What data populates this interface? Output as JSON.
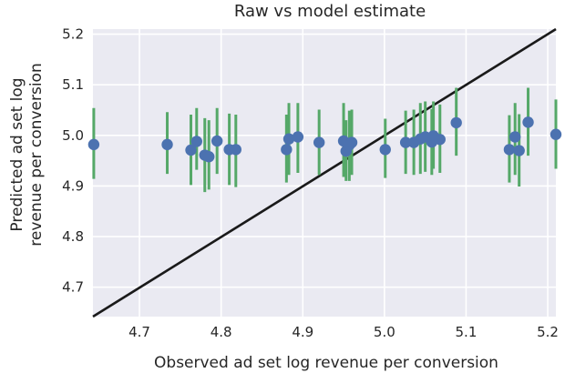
{
  "chart_data": {
    "type": "scatter",
    "title": "Raw vs model estimate",
    "xlabel": "Observed ad set log revenue per conversion",
    "ylabel_lines": [
      "Predicted ad set log",
      "revenue per conversion"
    ],
    "xlim": [
      4.643,
      5.21
    ],
    "ylim": [
      4.642,
      5.21
    ],
    "x_ticks": [
      4.7,
      4.8,
      4.9,
      5.0,
      5.1,
      5.2
    ],
    "x_tick_labels": [
      "4.7",
      "4.8",
      "4.9",
      "5.0",
      "5.1",
      "5.2"
    ],
    "y_ticks": [
      4.7,
      4.8,
      4.9,
      5.0,
      5.1,
      5.2
    ],
    "y_tick_labels": [
      "4.7",
      "4.8",
      "4.9",
      "5.0",
      "5.1",
      "5.2"
    ],
    "grid": true,
    "background": "#eaeaf2",
    "point_color": "#4c72b0",
    "errorbar_color": "#55a868",
    "line_color": "#1a1a1a",
    "reference_line": {
      "x": [
        4.643,
        5.21
      ],
      "y": [
        4.642,
        5.21
      ]
    },
    "points": [
      {
        "x": 4.644,
        "y": 4.982,
        "lo": 4.914,
        "hi": 5.054
      },
      {
        "x": 4.734,
        "y": 4.982,
        "lo": 4.924,
        "hi": 5.046
      },
      {
        "x": 4.763,
        "y": 4.971,
        "lo": 4.902,
        "hi": 5.041
      },
      {
        "x": 4.77,
        "y": 4.988,
        "lo": 4.932,
        "hi": 5.054
      },
      {
        "x": 4.78,
        "y": 4.961,
        "lo": 4.888,
        "hi": 5.034
      },
      {
        "x": 4.785,
        "y": 4.958,
        "lo": 4.893,
        "hi": 5.03
      },
      {
        "x": 4.795,
        "y": 4.989,
        "lo": 4.924,
        "hi": 5.054
      },
      {
        "x": 4.81,
        "y": 4.972,
        "lo": 4.902,
        "hi": 5.043
      },
      {
        "x": 4.818,
        "y": 4.972,
        "lo": 4.898,
        "hi": 5.041
      },
      {
        "x": 4.88,
        "y": 4.972,
        "lo": 4.907,
        "hi": 5.041
      },
      {
        "x": 4.883,
        "y": 4.993,
        "lo": 4.922,
        "hi": 5.064
      },
      {
        "x": 4.894,
        "y": 4.997,
        "lo": 4.926,
        "hi": 5.064
      },
      {
        "x": 4.92,
        "y": 4.986,
        "lo": 4.922,
        "hi": 5.051
      },
      {
        "x": 4.95,
        "y": 4.989,
        "lo": 4.918,
        "hi": 5.064
      },
      {
        "x": 4.953,
        "y": 4.969,
        "lo": 4.91,
        "hi": 5.03
      },
      {
        "x": 4.957,
        "y": 4.981,
        "lo": 4.91,
        "hi": 5.049
      },
      {
        "x": 4.96,
        "y": 4.986,
        "lo": 4.922,
        "hi": 5.051
      },
      {
        "x": 5.001,
        "y": 4.972,
        "lo": 4.916,
        "hi": 5.033
      },
      {
        "x": 5.026,
        "y": 4.986,
        "lo": 4.924,
        "hi": 5.049
      },
      {
        "x": 5.036,
        "y": 4.986,
        "lo": 4.922,
        "hi": 5.051
      },
      {
        "x": 5.044,
        "y": 4.993,
        "lo": 4.924,
        "hi": 5.064
      },
      {
        "x": 5.05,
        "y": 4.997,
        "lo": 4.928,
        "hi": 5.067
      },
      {
        "x": 5.058,
        "y": 4.987,
        "lo": 4.922,
        "hi": 5.052
      },
      {
        "x": 5.06,
        "y": 4.999,
        "lo": 4.934,
        "hi": 5.067
      },
      {
        "x": 5.068,
        "y": 4.992,
        "lo": 4.926,
        "hi": 5.061
      },
      {
        "x": 5.088,
        "y": 5.025,
        "lo": 4.96,
        "hi": 5.094
      },
      {
        "x": 5.153,
        "y": 4.972,
        "lo": 4.907,
        "hi": 5.04
      },
      {
        "x": 5.16,
        "y": 4.997,
        "lo": 4.922,
        "hi": 5.064
      },
      {
        "x": 5.165,
        "y": 4.97,
        "lo": 4.899,
        "hi": 5.042
      },
      {
        "x": 5.176,
        "y": 5.026,
        "lo": 4.96,
        "hi": 5.094
      },
      {
        "x": 5.21,
        "y": 5.002,
        "lo": 4.934,
        "hi": 5.071
      }
    ]
  }
}
